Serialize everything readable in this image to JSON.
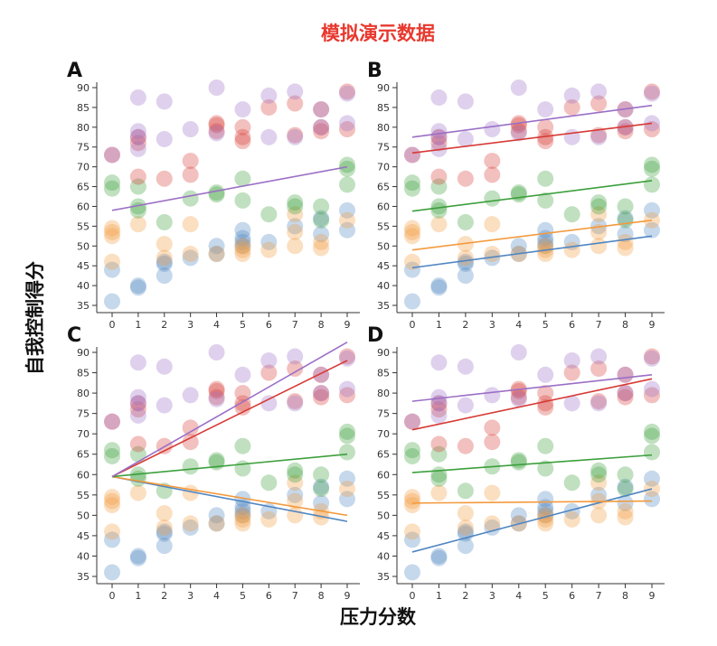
{
  "chart_data": {
    "type": "scatter",
    "title": "模拟演示数据",
    "xlabel": "压力分数",
    "ylabel": "自我控制得分",
    "xlim": [
      0,
      9
    ],
    "ylim": [
      35,
      90
    ],
    "xticks": [
      "0",
      "1",
      "2",
      "3",
      "4",
      "5",
      "6",
      "7",
      "8",
      "9"
    ],
    "yticks": [
      "35",
      "40",
      "45",
      "50",
      "55",
      "60",
      "65",
      "70",
      "75",
      "80",
      "85",
      "90"
    ],
    "grid": false,
    "colors": {
      "blue": "#4f86c2",
      "orange": "#f39a3e",
      "green": "#3c9f3c",
      "red": "#d63a35",
      "purple": "#9b6fc6",
      "title": "#e8382e"
    },
    "series": [
      {
        "name": "blue",
        "color": "#4f86c2",
        "points": [
          [
            0,
            36
          ],
          [
            0,
            44
          ],
          [
            1,
            39.5
          ],
          [
            1,
            40
          ],
          [
            2,
            42.5
          ],
          [
            2,
            45.5
          ],
          [
            2,
            46
          ],
          [
            3,
            47
          ],
          [
            4,
            48
          ],
          [
            4,
            50
          ],
          [
            5,
            50
          ],
          [
            5,
            51
          ],
          [
            5,
            52
          ],
          [
            5,
            54
          ],
          [
            6,
            51
          ],
          [
            7,
            55
          ],
          [
            8,
            53
          ],
          [
            8,
            57
          ],
          [
            9,
            54
          ],
          [
            9,
            59
          ]
        ]
      },
      {
        "name": "orange",
        "color": "#f39a3e",
        "points": [
          [
            0,
            46
          ],
          [
            0,
            52.5
          ],
          [
            0,
            53.5
          ],
          [
            0,
            54.5
          ],
          [
            1,
            55.5
          ],
          [
            2,
            47
          ],
          [
            2,
            50.5
          ],
          [
            3,
            48
          ],
          [
            3,
            55.5
          ],
          [
            4,
            48
          ],
          [
            5,
            48
          ],
          [
            5,
            49
          ],
          [
            5,
            50
          ],
          [
            6,
            49
          ],
          [
            7,
            50
          ],
          [
            7,
            53.5
          ],
          [
            7,
            58
          ],
          [
            8,
            49.5
          ],
          [
            8,
            51
          ],
          [
            9,
            56.5
          ]
        ]
      },
      {
        "name": "green",
        "color": "#3c9f3c",
        "points": [
          [
            0,
            64.5
          ],
          [
            0,
            66
          ],
          [
            1,
            59
          ],
          [
            1,
            60
          ],
          [
            1,
            65
          ],
          [
            2,
            56
          ],
          [
            3,
            62
          ],
          [
            4,
            63
          ],
          [
            4,
            63.5
          ],
          [
            5,
            61.5
          ],
          [
            5,
            67
          ],
          [
            6,
            58
          ],
          [
            7,
            60
          ],
          [
            7,
            61
          ],
          [
            8,
            56.5
          ],
          [
            8,
            60
          ],
          [
            9,
            65.5
          ],
          [
            9,
            69.5
          ],
          [
            9,
            70.5
          ]
        ]
      },
      {
        "name": "red",
        "color": "#d63a35",
        "points": [
          [
            0,
            73
          ],
          [
            1,
            67.5
          ],
          [
            1,
            76
          ],
          [
            1,
            77.5
          ],
          [
            2,
            67
          ],
          [
            3,
            68
          ],
          [
            3,
            71.5
          ],
          [
            4,
            79
          ],
          [
            4,
            80.5
          ],
          [
            4,
            81
          ],
          [
            5,
            76.5
          ],
          [
            5,
            77.5
          ],
          [
            5,
            80
          ],
          [
            6,
            85
          ],
          [
            7,
            78
          ],
          [
            7,
            86
          ],
          [
            8,
            79
          ],
          [
            8,
            80
          ],
          [
            8,
            84.5
          ],
          [
            9,
            79.5
          ],
          [
            9,
            89
          ]
        ]
      },
      {
        "name": "purple",
        "color": "#9b6fc6",
        "points": [
          [
            0,
            73
          ],
          [
            1,
            74.5
          ],
          [
            1,
            77.5
          ],
          [
            1,
            79
          ],
          [
            1,
            87.5
          ],
          [
            2,
            77
          ],
          [
            2,
            86.5
          ],
          [
            3,
            79.5
          ],
          [
            4,
            78.5
          ],
          [
            4,
            90
          ],
          [
            5,
            84.5
          ],
          [
            6,
            77.5
          ],
          [
            6,
            88
          ],
          [
            7,
            77.5
          ],
          [
            7,
            89
          ],
          [
            8,
            80
          ],
          [
            8,
            84.5
          ],
          [
            9,
            81
          ],
          [
            9,
            88.5
          ]
        ]
      }
    ],
    "panels": [
      {
        "label": "A",
        "lines": [
          {
            "color": "#9b6fc6",
            "x": [
              0,
              9
            ],
            "y": [
              59,
              70
            ]
          }
        ]
      },
      {
        "label": "B",
        "lines": [
          {
            "color": "#4f86c2",
            "x": [
              0,
              9
            ],
            "y": [
              44.5,
              52.5
            ]
          },
          {
            "color": "#f39a3e",
            "x": [
              0,
              9
            ],
            "y": [
              49,
              56.5
            ]
          },
          {
            "color": "#3c9f3c",
            "x": [
              0,
              9
            ],
            "y": [
              58.8,
              66.5
            ]
          },
          {
            "color": "#d63a35",
            "x": [
              0,
              9
            ],
            "y": [
              73.5,
              81
            ]
          },
          {
            "color": "#9b6fc6",
            "x": [
              0,
              9
            ],
            "y": [
              77.5,
              85.5
            ]
          }
        ]
      },
      {
        "label": "C",
        "lines": [
          {
            "color": "#4f86c2",
            "x": [
              0,
              9
            ],
            "y": [
              59.5,
              48.5
            ]
          },
          {
            "color": "#f39a3e",
            "x": [
              0,
              9
            ],
            "y": [
              59.5,
              50
            ]
          },
          {
            "color": "#3c9f3c",
            "x": [
              0,
              9
            ],
            "y": [
              59.5,
              65
            ]
          },
          {
            "color": "#d63a35",
            "x": [
              0,
              9
            ],
            "y": [
              59.5,
              88
            ]
          },
          {
            "color": "#9b6fc6",
            "x": [
              0,
              9
            ],
            "y": [
              59.5,
              92.5
            ]
          }
        ]
      },
      {
        "label": "D",
        "lines": [
          {
            "color": "#4f86c2",
            "x": [
              0,
              9
            ],
            "y": [
              41,
              56.5
            ]
          },
          {
            "color": "#f39a3e",
            "x": [
              0,
              9
            ],
            "y": [
              53,
              53.5
            ]
          },
          {
            "color": "#3c9f3c",
            "x": [
              0,
              9
            ],
            "y": [
              60.5,
              64.8
            ]
          },
          {
            "color": "#d63a35",
            "x": [
              0,
              9
            ],
            "y": [
              71,
              83.5
            ]
          },
          {
            "color": "#9b6fc6",
            "x": [
              0,
              9
            ],
            "y": [
              78,
              84.5
            ]
          }
        ]
      }
    ]
  }
}
